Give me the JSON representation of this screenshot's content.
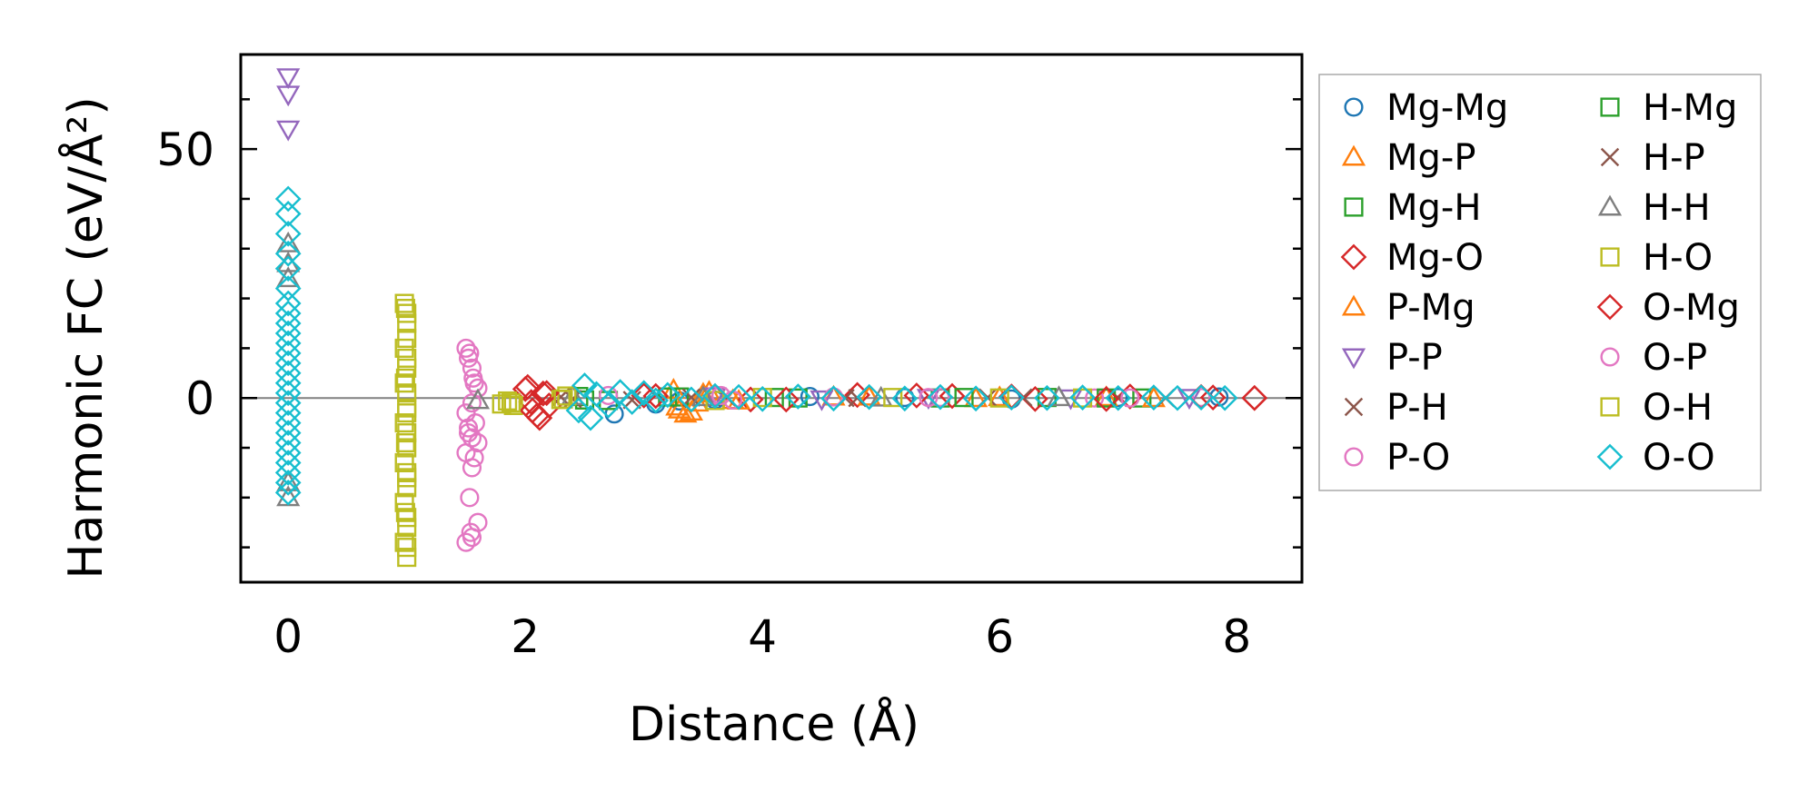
{
  "chart_data": {
    "type": "scatter",
    "title": "",
    "xlabel": "Distance (Å)",
    "ylabel": "Harmonic FC (eV/Å²)",
    "xlim": [
      -0.4,
      8.55
    ],
    "ylim": [
      -37,
      69
    ],
    "xticks": [
      0,
      2,
      4,
      6,
      8
    ],
    "yticks": [
      0,
      50
    ],
    "xtick_labels": [
      "0",
      "2",
      "4",
      "6",
      "8"
    ],
    "ytick_labels": [
      "0",
      "50"
    ],
    "zero_line": true,
    "grid": false,
    "legend_position": "outside-right",
    "legend_columns": 2,
    "series": [
      {
        "name": "Mg-Mg",
        "marker": "circle",
        "color": "#1f77b4",
        "points": [
          [
            2.75,
            -3.2
          ],
          [
            3.1,
            -1.2
          ],
          [
            3.3,
            -0.6
          ],
          [
            3.6,
            -0.4
          ],
          [
            4.4,
            0.3
          ],
          [
            5.2,
            0.1
          ],
          [
            6.1,
            -0.2
          ],
          [
            7.0,
            0.1
          ],
          [
            7.85,
            0.2
          ]
        ]
      },
      {
        "name": "Mg-P",
        "marker": "triangle-up",
        "color": "#ff7f0e",
        "points": [
          [
            3.25,
            1.6
          ],
          [
            3.3,
            -2.4
          ],
          [
            3.35,
            -3.2
          ],
          [
            3.45,
            -1.0
          ],
          [
            3.5,
            0.8
          ],
          [
            3.75,
            -0.5
          ],
          [
            4.6,
            0.2
          ],
          [
            5.8,
            -0.1
          ],
          [
            6.9,
            0.1
          ]
        ]
      },
      {
        "name": "Mg-H",
        "marker": "square",
        "color": "#2ca02c",
        "points": [
          [
            2.45,
            0.3
          ],
          [
            2.7,
            -0.5
          ],
          [
            3.3,
            0.2
          ],
          [
            4.1,
            0.1
          ],
          [
            5.5,
            0.0
          ],
          [
            6.4,
            0.1
          ],
          [
            7.2,
            0.0
          ]
        ]
      },
      {
        "name": "Mg-O",
        "marker": "diamond",
        "color": "#d62728",
        "points": [
          [
            2.0,
            1.8
          ],
          [
            2.05,
            -0.8
          ],
          [
            2.1,
            -3.5
          ],
          [
            2.15,
            0.9
          ],
          [
            2.2,
            -1.5
          ],
          [
            3.0,
            0.5
          ],
          [
            3.9,
            -0.3
          ],
          [
            4.8,
            0.6
          ],
          [
            5.6,
            0.4
          ],
          [
            6.3,
            -0.2
          ],
          [
            7.1,
            0.3
          ],
          [
            7.8,
            0.1
          ],
          [
            8.15,
            0.0
          ]
        ]
      },
      {
        "name": "P-Mg",
        "marker": "triangle-up",
        "color": "#ff7f0e",
        "points": [
          [
            3.28,
            -1.8
          ],
          [
            3.4,
            -2.8
          ],
          [
            3.55,
            1.2
          ],
          [
            3.8,
            -0.6
          ],
          [
            4.9,
            0.2
          ],
          [
            6.0,
            0.1
          ],
          [
            7.3,
            -0.1
          ]
        ]
      },
      {
        "name": "P-P",
        "marker": "triangle-down",
        "color": "#9467bd",
        "points": [
          [
            0,
            64.5
          ],
          [
            0,
            61
          ],
          [
            0,
            54
          ],
          [
            3.6,
            0.4
          ],
          [
            4.5,
            -0.2
          ],
          [
            5.4,
            0.1
          ],
          [
            6.6,
            0.0
          ],
          [
            7.6,
            0.1
          ]
        ]
      },
      {
        "name": "P-H",
        "marker": "x",
        "color": "#8c564b",
        "points": [
          [
            2.3,
            0.2
          ],
          [
            2.9,
            -0.4
          ],
          [
            3.7,
            0.1
          ],
          [
            4.7,
            0.0
          ],
          [
            5.9,
            0.1
          ],
          [
            7.0,
            0.0
          ]
        ]
      },
      {
        "name": "P-O",
        "marker": "circle",
        "color": "#e377c2",
        "points": [
          [
            1.5,
            10
          ],
          [
            1.52,
            8
          ],
          [
            1.55,
            6
          ],
          [
            1.57,
            3
          ],
          [
            1.6,
            2
          ],
          [
            1.55,
            -1
          ],
          [
            1.5,
            -3
          ],
          [
            1.58,
            -5
          ],
          [
            1.52,
            -7
          ],
          [
            1.55,
            -8
          ],
          [
            1.6,
            -9
          ],
          [
            1.5,
            -11
          ],
          [
            1.55,
            -14
          ],
          [
            1.53,
            -20
          ],
          [
            1.6,
            -25
          ],
          [
            1.55,
            -28
          ],
          [
            1.5,
            -29
          ],
          [
            2.7,
            0.5
          ],
          [
            3.6,
            0.6
          ],
          [
            3.75,
            -0.4
          ],
          [
            4.6,
            0.2
          ],
          [
            5.5,
            0.1
          ],
          [
            6.8,
            0.0
          ],
          [
            7.7,
            0.1
          ]
        ]
      },
      {
        "name": "H-Mg",
        "marker": "square",
        "color": "#2ca02c",
        "points": [
          [
            2.5,
            -0.4
          ],
          [
            3.2,
            0.2
          ],
          [
            4.3,
            0.0
          ],
          [
            5.7,
            0.1
          ],
          [
            6.9,
            0.0
          ]
        ]
      },
      {
        "name": "H-P",
        "marker": "x",
        "color": "#8c564b",
        "points": [
          [
            2.4,
            -0.2
          ],
          [
            3.4,
            0.1
          ],
          [
            4.8,
            0.0
          ],
          [
            6.2,
            0.1
          ],
          [
            7.4,
            0.0
          ]
        ]
      },
      {
        "name": "H-H",
        "marker": "triangle-up",
        "color": "#7f7f7f",
        "points": [
          [
            0,
            31
          ],
          [
            0,
            27
          ],
          [
            0,
            24
          ],
          [
            0,
            -17
          ],
          [
            0,
            -20
          ],
          [
            1.6,
            -0.5
          ],
          [
            2.4,
            0.3
          ],
          [
            3.5,
            0.1
          ],
          [
            5.0,
            0.0
          ],
          [
            6.5,
            0.1
          ]
        ]
      },
      {
        "name": "H-O",
        "marker": "square",
        "color": "#bcbd22",
        "points": [
          [
            0.98,
            19
          ],
          [
            1.0,
            17
          ],
          [
            1.0,
            15
          ],
          [
            0.98,
            10
          ],
          [
            1.0,
            8
          ],
          [
            1.0,
            6
          ],
          [
            0.98,
            3
          ],
          [
            1.0,
            1
          ],
          [
            1.0,
            -2
          ],
          [
            0.98,
            -5
          ],
          [
            1.0,
            -7
          ],
          [
            1.0,
            -10
          ],
          [
            0.98,
            -13
          ],
          [
            1.0,
            -15
          ],
          [
            1.0,
            -18
          ],
          [
            0.98,
            -21
          ],
          [
            1.0,
            -24
          ],
          [
            1.0,
            -26
          ],
          [
            0.98,
            -29
          ],
          [
            1.0,
            -32
          ],
          [
            1.8,
            -1.2
          ],
          [
            1.85,
            -0.6
          ],
          [
            1.9,
            -1.5
          ],
          [
            2.3,
            -0.3
          ],
          [
            2.35,
            0.4
          ],
          [
            3.6,
            -0.5
          ],
          [
            5.1,
            0.1
          ],
          [
            6.7,
            0.0
          ]
        ]
      },
      {
        "name": "O-Mg",
        "marker": "diamond",
        "color": "#d62728",
        "points": [
          [
            2.02,
            2.2
          ],
          [
            2.06,
            -2.5
          ],
          [
            2.12,
            -4.0
          ],
          [
            2.18,
            1.0
          ],
          [
            3.1,
            0.4
          ],
          [
            4.2,
            -0.3
          ],
          [
            5.3,
            0.5
          ],
          [
            6.1,
            0.3
          ],
          [
            6.9,
            -0.2
          ],
          [
            7.7,
            0.2
          ],
          [
            8.15,
            0.0
          ]
        ]
      },
      {
        "name": "O-P",
        "marker": "circle",
        "color": "#e377c2",
        "points": [
          [
            1.53,
            9
          ],
          [
            1.56,
            4
          ],
          [
            1.52,
            -6
          ],
          [
            1.57,
            -12
          ],
          [
            1.54,
            -27
          ],
          [
            3.65,
            0.5
          ],
          [
            5.4,
            0.1
          ],
          [
            7.1,
            0.0
          ]
        ]
      },
      {
        "name": "O-H",
        "marker": "square",
        "color": "#bcbd22",
        "points": [
          [
            0.99,
            18
          ],
          [
            1.0,
            12
          ],
          [
            0.99,
            4
          ],
          [
            1.0,
            -3
          ],
          [
            0.99,
            -9
          ],
          [
            1.0,
            -16
          ],
          [
            0.99,
            -23
          ],
          [
            1.0,
            -30
          ],
          [
            1.88,
            -1.0
          ],
          [
            2.32,
            -0.2
          ],
          [
            4.0,
            0.1
          ],
          [
            6.0,
            0.0
          ]
        ]
      },
      {
        "name": "O-O",
        "marker": "diamond",
        "color": "#17becf",
        "points": [
          [
            0,
            40
          ],
          [
            0,
            37
          ],
          [
            0,
            33
          ],
          [
            0,
            29
          ],
          [
            0,
            26
          ],
          [
            0,
            22
          ],
          [
            0,
            19
          ],
          [
            0,
            17
          ],
          [
            0,
            15
          ],
          [
            0,
            13
          ],
          [
            0,
            11
          ],
          [
            0,
            9
          ],
          [
            0,
            7
          ],
          [
            0,
            5
          ],
          [
            0,
            3
          ],
          [
            0,
            1
          ],
          [
            0,
            -1
          ],
          [
            0,
            -3
          ],
          [
            0,
            -5
          ],
          [
            0,
            -7
          ],
          [
            0,
            -9
          ],
          [
            0,
            -11
          ],
          [
            0,
            -13
          ],
          [
            0,
            -15
          ],
          [
            0,
            -17
          ],
          [
            0,
            -19
          ],
          [
            2.45,
            -2.5
          ],
          [
            2.5,
            2.5
          ],
          [
            2.55,
            -4
          ],
          [
            2.6,
            0.8
          ],
          [
            2.7,
            -1.5
          ],
          [
            2.8,
            1.2
          ],
          [
            2.9,
            -0.8
          ],
          [
            3.0,
            1.0
          ],
          [
            3.1,
            -0.5
          ],
          [
            3.2,
            0.6
          ],
          [
            3.4,
            -0.3
          ],
          [
            3.6,
            0.4
          ],
          [
            3.8,
            0.2
          ],
          [
            4.0,
            -0.2
          ],
          [
            4.3,
            0.3
          ],
          [
            4.6,
            -0.1
          ],
          [
            4.9,
            0.2
          ],
          [
            5.2,
            -0.1
          ],
          [
            5.5,
            0.2
          ],
          [
            5.8,
            -0.1
          ],
          [
            6.1,
            0.1
          ],
          [
            6.4,
            0.0
          ],
          [
            6.7,
            0.1
          ],
          [
            7.0,
            0.0
          ],
          [
            7.3,
            0.1
          ],
          [
            7.5,
            0.0
          ],
          [
            7.7,
            0.1
          ],
          [
            7.9,
            0.0
          ]
        ]
      }
    ]
  }
}
